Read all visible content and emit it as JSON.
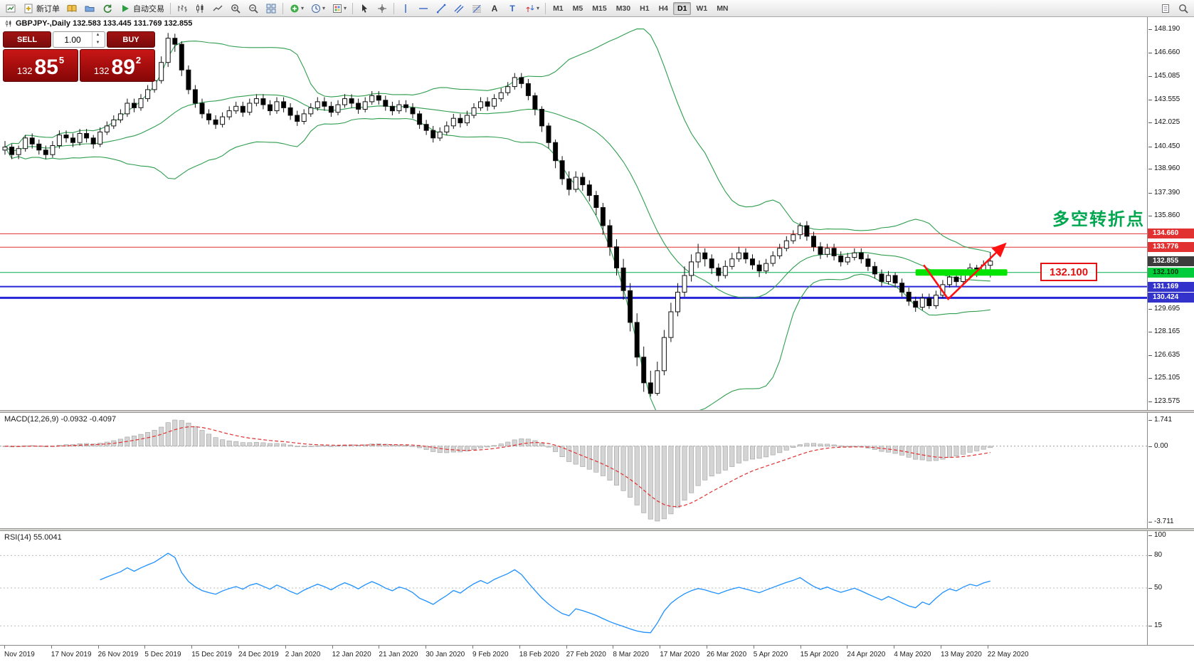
{
  "toolbar": {
    "items": [
      {
        "name": "new-chart",
        "icon": "chart-new"
      },
      {
        "name": "new-order",
        "icon": "order",
        "label": "新订单"
      },
      {
        "name": "charts-book",
        "icon": "book"
      },
      {
        "name": "data-folder",
        "icon": "folder"
      },
      {
        "name": "refresh",
        "icon": "refresh"
      },
      {
        "name": "auto-trading",
        "icon": "play",
        "label": "自动交易"
      },
      {
        "sep": true
      },
      {
        "name": "bar-chart-mode",
        "icon": "bars"
      },
      {
        "name": "candle-chart-mode",
        "icon": "candles"
      },
      {
        "name": "line-chart-mode",
        "icon": "line"
      },
      {
        "name": "zoom-in",
        "icon": "zoom-in"
      },
      {
        "name": "zoom-out",
        "icon": "zoom-out"
      },
      {
        "name": "tile-windows",
        "icon": "tile"
      },
      {
        "sep": true
      },
      {
        "name": "indicators",
        "icon": "indicators",
        "caret": true
      },
      {
        "name": "periods",
        "icon": "clock",
        "caret": true
      },
      {
        "name": "templates",
        "icon": "template",
        "caret": true
      },
      {
        "sep": true
      },
      {
        "name": "cursor",
        "icon": "cursor"
      },
      {
        "name": "crosshair",
        "icon": "crosshair"
      },
      {
        "sep": true
      },
      {
        "name": "vertical-line",
        "icon": "vline"
      },
      {
        "name": "horizontal-line",
        "icon": "hline"
      },
      {
        "name": "trend-line",
        "icon": "tline"
      },
      {
        "name": "equidistant-channel",
        "icon": "channel"
      },
      {
        "name": "fibonacci",
        "icon": "fibo"
      },
      {
        "name": "text",
        "icon": "textA"
      },
      {
        "name": "text-label",
        "icon": "textT"
      },
      {
        "name": "arrow-objects",
        "icon": "arrows",
        "caret": true
      }
    ],
    "timeframes": [
      "M1",
      "M5",
      "M15",
      "M30",
      "H1",
      "H4",
      "D1",
      "W1",
      "MN"
    ],
    "active_timeframe": "D1",
    "right_items": [
      {
        "name": "document",
        "icon": "doc"
      },
      {
        "name": "search",
        "icon": "search"
      }
    ]
  },
  "chart": {
    "symbol_info": "GBPJPY-,Daily 132.583 133.445 131.769 132.855",
    "trade_panel": {
      "sell_label": "SELL",
      "buy_label": "BUY",
      "volume": "1.00",
      "sell": {
        "prefix": "132",
        "big": "85",
        "sup": "5"
      },
      "buy": {
        "prefix": "132",
        "big": "89",
        "sup": "2"
      }
    },
    "annotation_text": "多空转折点",
    "price_callout": "132.100",
    "levels": [
      {
        "label": "134.660",
        "price": 134.66,
        "color": "#e03030",
        "chip": "#e23131",
        "chip_text": "#ffffff",
        "width": 1,
        "line": true
      },
      {
        "label": "133.776",
        "price": 133.776,
        "color": "#e03030",
        "chip": "#e23131",
        "chip_text": "#ffffff",
        "width": 1,
        "line": true
      },
      {
        "label": "132.855",
        "price": 132.855,
        "color": "#555555",
        "chip": "#3c3c3c",
        "chip_text": "#ffffff",
        "width": 1,
        "line": false
      },
      {
        "label": "132.100",
        "price": 132.1,
        "color": "#00b050",
        "chip": "#00cc3c",
        "chip_text": "#05320e",
        "width": 1,
        "line": true
      },
      {
        "label": "131.169",
        "price": 131.169,
        "color": "#2626d8",
        "chip": "#3333cc",
        "chip_text": "#ffffff",
        "width": 2,
        "line": true
      },
      {
        "label": "130.424",
        "price": 130.424,
        "color": "#2626d8",
        "chip": "#3333cc",
        "chip_text": "#ffffff",
        "width": 3,
        "line": true
      }
    ],
    "y_ticks": [
      "148.190",
      "146.660",
      "145.085",
      "143.555",
      "142.025",
      "140.450",
      "138.960",
      "137.390",
      "135.860",
      "129.695",
      "128.165",
      "126.635",
      "125.105",
      "123.575"
    ],
    "highlight_band": {
      "price": 132.1,
      "from_index": 134,
      "to_index": 147.5,
      "thickness": 9,
      "color": "#00e400"
    },
    "arrow": {
      "color": "#ff1111",
      "points": [
        [
          135.2,
          132.6
        ],
        [
          138.8,
          130.35
        ],
        [
          147.2,
          134.0
        ]
      ]
    }
  },
  "macd": {
    "label": "MACD(12,26,9) -0.0932 -0.4097",
    "ticks": {
      "max": "1.741",
      "zero": "0.00",
      "min": "-3.711"
    }
  },
  "rsi": {
    "label": "RSI(14) 55.0041",
    "ticks": [
      "100",
      "80",
      "50",
      "15"
    ],
    "levels": [
      80,
      50,
      15
    ]
  },
  "x_axis": {
    "labels": [
      "Nov 2019",
      "17 Nov 2019",
      "26 Nov 2019",
      "5 Dec 2019",
      "15 Dec 2019",
      "24 Dec 2019",
      "2 Jan 2020",
      "12 Jan 2020",
      "21 Jan 2020",
      "30 Jan 2020",
      "9 Feb 2020",
      "18 Feb 2020",
      "27 Feb 2020",
      "8 Mar 2020",
      "17 Mar 2020",
      "26 Mar 2020",
      "5 Apr 2020",
      "15 Apr 2020",
      "24 Apr 2020",
      "4 May 2020",
      "13 May 2020",
      "22 May 2020"
    ]
  },
  "colors": {
    "bollinger": "#2f9e4f",
    "bull": "#ffffff",
    "bear": "#000000",
    "macd_hist": "#d4d4d4",
    "macd_signal": "#e03030",
    "rsi_line": "#1e90ff",
    "annotation_green": "#00a650",
    "band_green": "#00e400",
    "trade_red": "#b30d0d"
  },
  "chart_data": {
    "type": "candlestick",
    "symbol": "GBPJPY-",
    "timeframe": "Daily",
    "ohlc_current": {
      "open": 132.583,
      "high": 133.445,
      "low": 131.769,
      "close": 132.855
    },
    "y_range": [
      123.0,
      149.0
    ],
    "indicators": [
      {
        "name": "Bollinger Bands",
        "period": 20,
        "deviation": 2
      },
      {
        "name": "MACD",
        "fast": 12,
        "slow": 26,
        "signal": 9,
        "values_shown": [
          -0.0932,
          -0.4097
        ]
      },
      {
        "name": "RSI",
        "period": 14,
        "value_shown": 55.0041
      }
    ],
    "candles": [
      [
        140.2,
        140.8,
        139.9,
        140.4
      ],
      [
        140.4,
        140.6,
        139.6,
        139.9
      ],
      [
        139.9,
        140.5,
        139.6,
        140.3
      ],
      [
        140.3,
        141.2,
        140.1,
        141
      ],
      [
        141,
        141.3,
        140.3,
        140.6
      ],
      [
        140.6,
        140.9,
        139.9,
        140.2
      ],
      [
        140.2,
        140.5,
        139.6,
        139.9
      ],
      [
        139.9,
        140.8,
        139.7,
        140.5
      ],
      [
        140.5,
        141.5,
        140.3,
        141.2
      ],
      [
        141.2,
        141.5,
        140.7,
        141
      ],
      [
        141,
        141.3,
        140.4,
        140.7
      ],
      [
        140.7,
        141.6,
        140.5,
        141.3
      ],
      [
        141.3,
        141.6,
        140.7,
        141
      ],
      [
        141,
        141.2,
        140.3,
        140.6
      ],
      [
        140.6,
        141.7,
        140.4,
        141.4
      ],
      [
        141.4,
        142.1,
        141.2,
        141.8
      ],
      [
        141.8,
        142.5,
        141.6,
        142.2
      ],
      [
        142.2,
        142.9,
        142,
        142.6
      ],
      [
        142.6,
        143.6,
        142.4,
        143.3
      ],
      [
        143.3,
        143.6,
        142.7,
        143
      ],
      [
        143,
        143.9,
        142.8,
        143.6
      ],
      [
        143.6,
        144.5,
        143.4,
        144.2
      ],
      [
        144.2,
        145.1,
        144,
        144.8
      ],
      [
        144.8,
        146.4,
        144.6,
        146
      ],
      [
        146,
        147.95,
        145.7,
        147.6
      ],
      [
        147.6,
        147.9,
        146.7,
        147.2
      ],
      [
        147.2,
        147.4,
        145.1,
        145.5
      ],
      [
        145.5,
        145.8,
        143.9,
        144.2
      ],
      [
        144.2,
        144.5,
        143,
        143.3
      ],
      [
        143.3,
        143.6,
        142.3,
        142.6
      ],
      [
        142.6,
        142.9,
        141.9,
        142.2
      ],
      [
        142.2,
        142.5,
        141.6,
        141.9
      ],
      [
        141.9,
        142.7,
        141.7,
        142.4
      ],
      [
        142.4,
        143.1,
        142.2,
        142.8
      ],
      [
        142.8,
        143.4,
        142.6,
        143.1
      ],
      [
        143.1,
        143.4,
        142.4,
        142.7
      ],
      [
        142.7,
        143.6,
        142.5,
        143.3
      ],
      [
        143.3,
        143.9,
        143.1,
        143.6
      ],
      [
        143.6,
        143.9,
        142.9,
        143.2
      ],
      [
        143.2,
        143.5,
        142.5,
        142.8
      ],
      [
        142.8,
        143.7,
        142.6,
        143.4
      ],
      [
        143.4,
        143.7,
        142.7,
        143
      ],
      [
        143,
        143.3,
        142.2,
        142.5
      ],
      [
        142.5,
        142.8,
        141.8,
        142.1
      ],
      [
        142.1,
        142.9,
        141.9,
        142.6
      ],
      [
        142.6,
        143.3,
        142.4,
        143
      ],
      [
        143,
        143.7,
        142.8,
        143.4
      ],
      [
        143.4,
        143.7,
        142.8,
        143.1
      ],
      [
        143.1,
        143.4,
        142.4,
        142.7
      ],
      [
        142.7,
        143.5,
        142.5,
        143.2
      ],
      [
        143.2,
        143.9,
        143,
        143.6
      ],
      [
        143.6,
        143.9,
        143,
        143.3
      ],
      [
        143.3,
        143.6,
        142.6,
        142.9
      ],
      [
        142.9,
        143.7,
        142.7,
        143.4
      ],
      [
        143.4,
        144.1,
        143.2,
        143.8
      ],
      [
        143.8,
        144.1,
        143.2,
        143.5
      ],
      [
        143.5,
        143.8,
        142.8,
        143.1
      ],
      [
        143.1,
        143.4,
        142.5,
        142.8
      ],
      [
        142.8,
        143.5,
        142.6,
        143.2
      ],
      [
        143.2,
        143.5,
        142.7,
        143
      ],
      [
        143,
        143.3,
        142.3,
        142.6
      ],
      [
        142.6,
        142.8,
        141.6,
        141.9
      ],
      [
        141.9,
        142.2,
        141.2,
        141.5
      ],
      [
        141.5,
        141.8,
        140.7,
        141
      ],
      [
        141,
        141.7,
        140.8,
        141.4
      ],
      [
        141.4,
        142.1,
        141.2,
        141.8
      ],
      [
        141.8,
        142.6,
        141.6,
        142.3
      ],
      [
        142.3,
        142.6,
        141.7,
        142
      ],
      [
        142,
        142.8,
        141.8,
        142.5
      ],
      [
        142.5,
        143.3,
        142.3,
        143
      ],
      [
        143,
        143.7,
        142.8,
        143.4
      ],
      [
        143.4,
        143.7,
        142.8,
        143.1
      ],
      [
        143.1,
        143.9,
        142.9,
        143.6
      ],
      [
        143.6,
        144.3,
        143.4,
        144
      ],
      [
        144,
        144.7,
        143.8,
        144.4
      ],
      [
        144.4,
        145.3,
        144.2,
        145
      ],
      [
        145,
        145.3,
        144.3,
        144.6
      ],
      [
        144.6,
        144.9,
        143.5,
        143.8
      ],
      [
        143.8,
        144,
        142.5,
        142.9
      ],
      [
        142.9,
        143.1,
        141.4,
        141.8
      ],
      [
        141.8,
        142,
        140.3,
        140.7
      ],
      [
        140.7,
        140.9,
        139,
        139.5
      ],
      [
        139.5,
        139.8,
        137.9,
        138.3
      ],
      [
        138.3,
        138.8,
        137.2,
        137.6
      ],
      [
        137.6,
        138.8,
        137.4,
        138.4
      ],
      [
        138.4,
        138.7,
        137.5,
        137.9
      ],
      [
        137.9,
        138.2,
        136.8,
        137.2
      ],
      [
        137.2,
        137.5,
        135.9,
        136.4
      ],
      [
        136.4,
        136.7,
        134.6,
        135.2
      ],
      [
        135.2,
        135.6,
        133.2,
        133.8
      ],
      [
        133.8,
        134.3,
        131.9,
        132.4
      ],
      [
        132.4,
        133,
        130.3,
        130.9
      ],
      [
        130.9,
        131.4,
        128.2,
        128.8
      ],
      [
        128.8,
        129.4,
        125.9,
        126.5
      ],
      [
        126.5,
        127.2,
        124.2,
        124.8
      ],
      [
        124.8,
        125.6,
        123.9,
        124.1
      ],
      [
        124.1,
        126.2,
        123.95,
        125.6
      ],
      [
        125.6,
        128.3,
        125.3,
        127.8
      ],
      [
        127.8,
        130.1,
        127.5,
        129.5
      ],
      [
        129.5,
        131.4,
        129.2,
        130.8
      ],
      [
        130.8,
        132.5,
        130.5,
        131.9
      ],
      [
        131.9,
        133.3,
        131.5,
        132.8
      ],
      [
        132.8,
        134,
        132.4,
        133.4
      ],
      [
        133.4,
        133.7,
        132.5,
        133
      ],
      [
        133,
        133.3,
        132,
        132.4
      ],
      [
        132.4,
        132.7,
        131.5,
        131.9
      ],
      [
        131.9,
        132.9,
        131.7,
        132.5
      ],
      [
        132.5,
        133.4,
        132.3,
        133
      ],
      [
        133,
        133.8,
        132.8,
        133.4
      ],
      [
        133.4,
        133.7,
        132.7,
        133
      ],
      [
        133,
        133.3,
        132.3,
        132.6
      ],
      [
        132.6,
        132.9,
        131.8,
        132.2
      ],
      [
        132.2,
        133,
        132,
        132.7
      ],
      [
        132.7,
        133.5,
        132.5,
        133.2
      ],
      [
        133.2,
        134,
        133,
        133.7
      ],
      [
        133.7,
        134.5,
        133.5,
        134.2
      ],
      [
        134.2,
        134.9,
        134,
        134.6
      ],
      [
        134.6,
        135.4,
        134.3,
        135.2
      ],
      [
        135.2,
        135.5,
        134.2,
        134.5
      ],
      [
        134.5,
        134.8,
        133.5,
        133.8
      ],
      [
        133.8,
        134.1,
        133,
        133.3
      ],
      [
        133.3,
        134,
        133.1,
        133.7
      ],
      [
        133.7,
        134,
        132.9,
        133.2
      ],
      [
        133.2,
        133.5,
        132.5,
        132.8
      ],
      [
        132.8,
        133.4,
        132.6,
        133.1
      ],
      [
        133.1,
        133.7,
        132.9,
        133.4
      ],
      [
        133.4,
        133.7,
        132.7,
        133
      ],
      [
        133,
        133.3,
        132.2,
        132.5
      ],
      [
        132.5,
        132.8,
        131.7,
        132
      ],
      [
        132,
        132.3,
        131.2,
        131.5
      ],
      [
        131.5,
        132.2,
        131.3,
        131.9
      ],
      [
        131.9,
        132.1,
        131.1,
        131.4
      ],
      [
        131.4,
        131.7,
        130.5,
        130.8
      ],
      [
        130.8,
        131.1,
        129.9,
        130.2
      ],
      [
        130.2,
        130.5,
        129.5,
        129.8
      ],
      [
        129.8,
        130.7,
        129.6,
        130.4
      ],
      [
        130.4,
        130.7,
        129.7,
        129.9
      ],
      [
        129.9,
        130.9,
        129.7,
        130.6
      ],
      [
        130.6,
        131.6,
        130.4,
        131.3
      ],
      [
        131.3,
        132.1,
        131.1,
        131.8
      ],
      [
        131.8,
        132,
        131.2,
        131.5
      ],
      [
        131.5,
        132.3,
        131.3,
        132
      ],
      [
        132,
        132.7,
        131.8,
        132.4
      ],
      [
        132.4,
        132.6,
        131.8,
        132.2
      ],
      [
        132.2,
        132.9,
        132,
        132.6
      ],
      [
        132.583,
        133.445,
        131.769,
        132.855
      ]
    ]
  }
}
